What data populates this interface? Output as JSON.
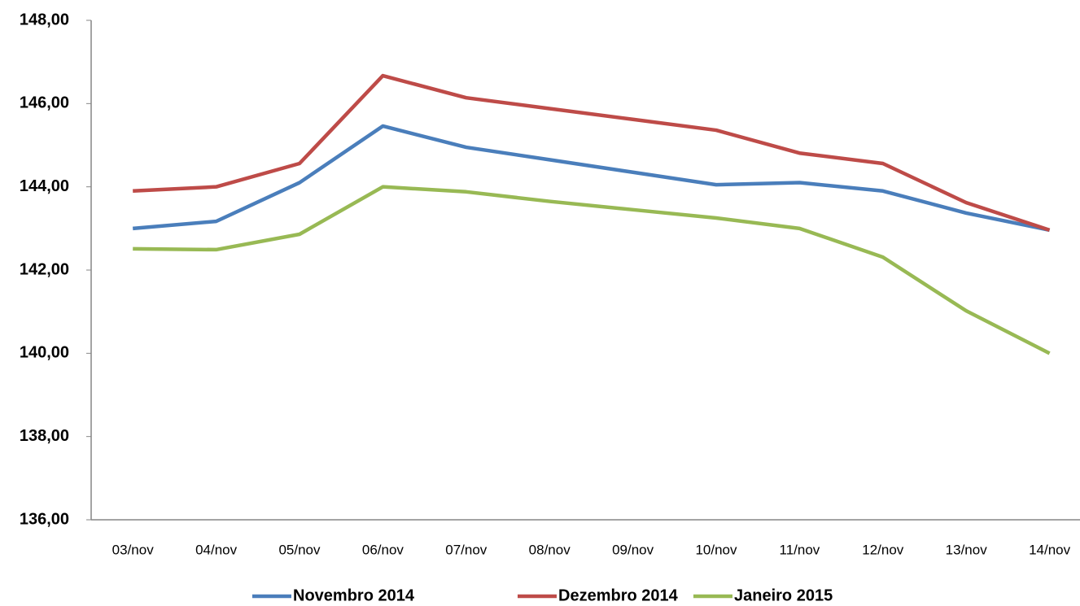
{
  "chart_data": {
    "type": "line",
    "categories": [
      "03/nov",
      "04/nov",
      "05/nov",
      "06/nov",
      "07/nov",
      "08/nov",
      "09/nov",
      "10/nov",
      "11/nov",
      "12/nov",
      "13/nov",
      "14/nov"
    ],
    "series": [
      {
        "name": "Novembro 2014",
        "color": "#4a7ebb",
        "values": [
          143.0,
          143.17,
          144.1,
          145.46,
          144.95,
          144.65,
          144.35,
          144.05,
          144.1,
          143.9,
          143.37,
          142.96
        ]
      },
      {
        "name": "Dezembro 2014",
        "color": "#be4b48",
        "values": [
          143.9,
          144.0,
          144.56,
          146.67,
          146.14,
          145.88,
          145.62,
          145.36,
          144.81,
          144.56,
          143.62,
          142.96
        ]
      },
      {
        "name": "Janeiro 2015",
        "color": "#98b954",
        "values": [
          142.51,
          142.49,
          142.86,
          144.0,
          143.88,
          143.65,
          143.45,
          143.25,
          143.0,
          142.31,
          141.02,
          140.0
        ]
      }
    ],
    "ylim": [
      136,
      148
    ],
    "yticks": [
      {
        "value": 136,
        "label": "136,00"
      },
      {
        "value": 138,
        "label": "138,00"
      },
      {
        "value": 140,
        "label": "140,00"
      },
      {
        "value": 142,
        "label": "142,00"
      },
      {
        "value": 144,
        "label": "144,00"
      },
      {
        "value": 146,
        "label": "146,00"
      },
      {
        "value": 148,
        "label": "148,00"
      }
    ],
    "grid": false,
    "legend": "bottom"
  }
}
